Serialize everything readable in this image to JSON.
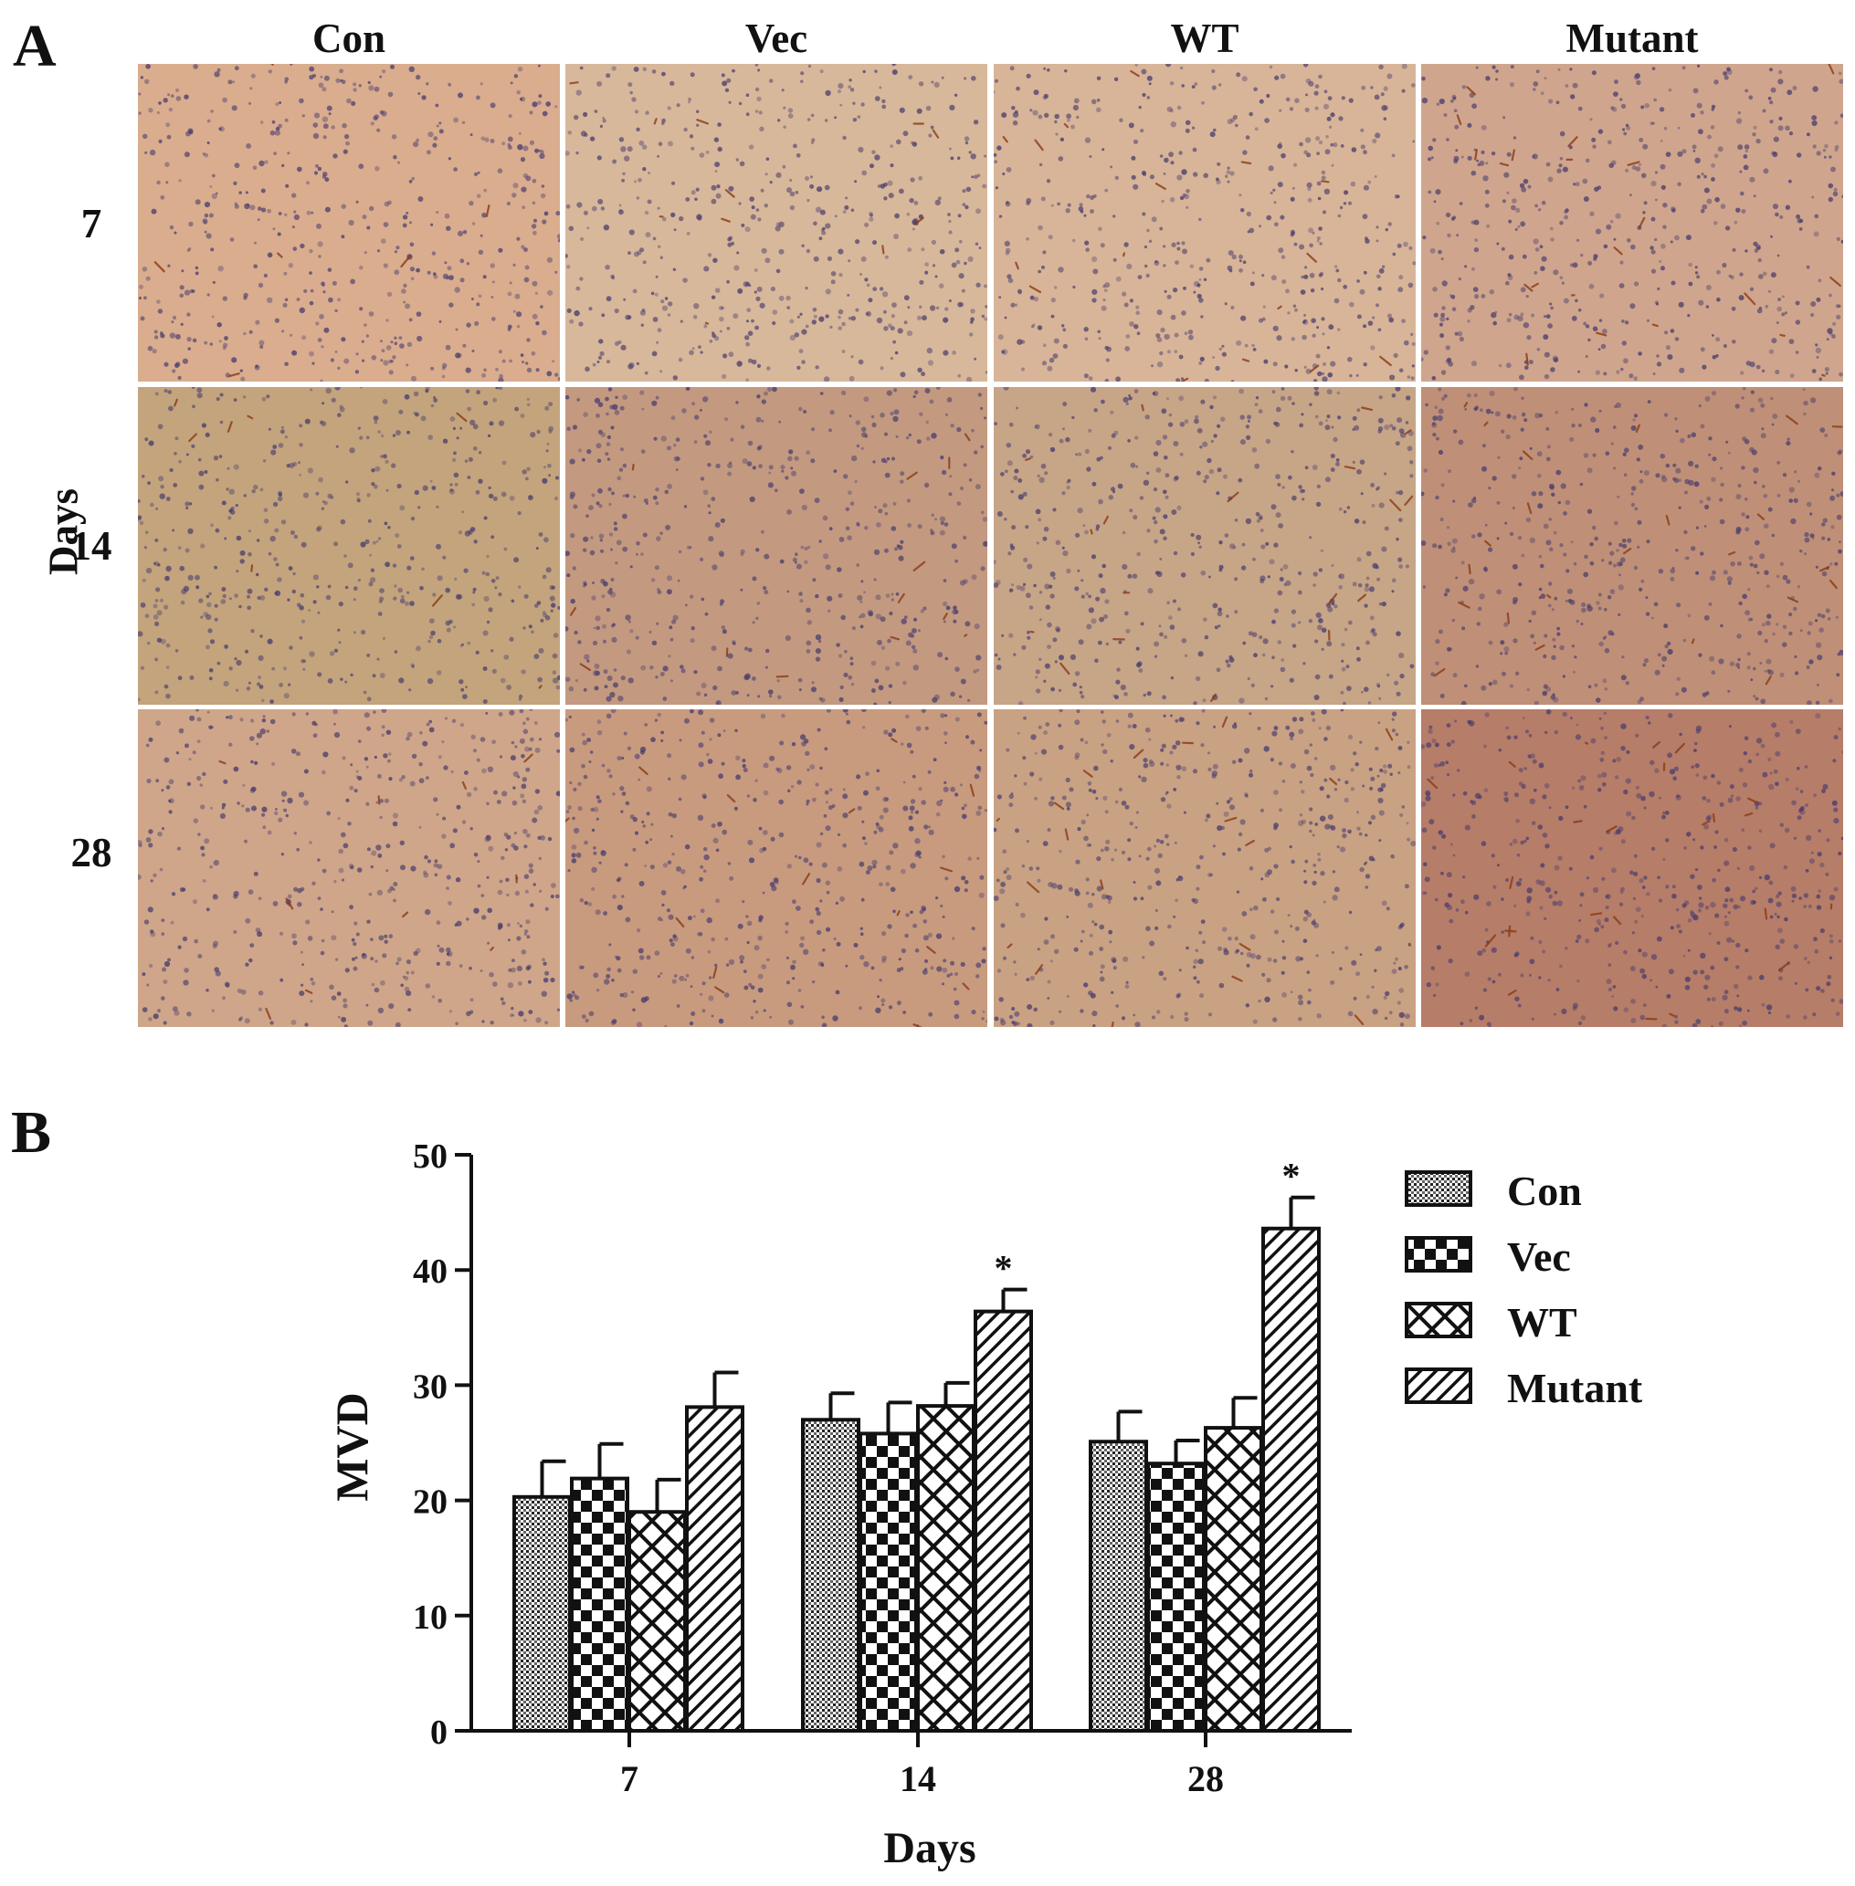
{
  "panel_a": {
    "letter": "A",
    "columns": [
      "Con",
      "Vec",
      "WT",
      "Mutant"
    ],
    "rows": [
      "7",
      "14",
      "28"
    ],
    "row_axis_label": "Days",
    "image_tints": [
      [
        "#d9ad8e",
        "#d8b89a",
        "#d8b598",
        "#cfa68d"
      ],
      [
        "#c3a47d",
        "#c39a80",
        "#c7a587",
        "#bf9077"
      ],
      [
        "#cfa689",
        "#c89b7f",
        "#c9a283",
        "#b67d68"
      ]
    ]
  },
  "panel_b": {
    "letter": "B",
    "legend": [
      {
        "label": "Con",
        "pattern": "dots-icon"
      },
      {
        "label": "Vec",
        "pattern": "checker-icon"
      },
      {
        "label": "WT",
        "pattern": "crosshatch-icon"
      },
      {
        "label": "Mutant",
        "pattern": "diagonal-stripes-icon"
      }
    ]
  },
  "chart_data": {
    "type": "bar",
    "xlabel": "Days",
    "ylabel": "MVD",
    "categories": [
      "7",
      "14",
      "28"
    ],
    "ylim": [
      0,
      50
    ],
    "yticks": [
      0,
      10,
      20,
      30,
      40,
      50
    ],
    "grid": false,
    "legend_position": "top-right",
    "series": [
      {
        "name": "Con",
        "values": [
          20.3,
          27.0,
          25.1
        ],
        "errors": [
          3.1,
          2.3,
          2.6
        ]
      },
      {
        "name": "Vec",
        "values": [
          21.9,
          25.8,
          23.2
        ],
        "errors": [
          3.0,
          2.7,
          2.0
        ]
      },
      {
        "name": "WT",
        "values": [
          19.0,
          28.2,
          26.3
        ],
        "errors": [
          2.8,
          2.0,
          2.6
        ]
      },
      {
        "name": "Mutant",
        "values": [
          28.1,
          36.4,
          43.6
        ],
        "errors": [
          3.0,
          1.9,
          2.7
        ]
      }
    ],
    "annotations": [
      {
        "text": "*",
        "category": "14",
        "series": "Mutant"
      },
      {
        "text": "*",
        "category": "28",
        "series": "Mutant"
      }
    ]
  }
}
